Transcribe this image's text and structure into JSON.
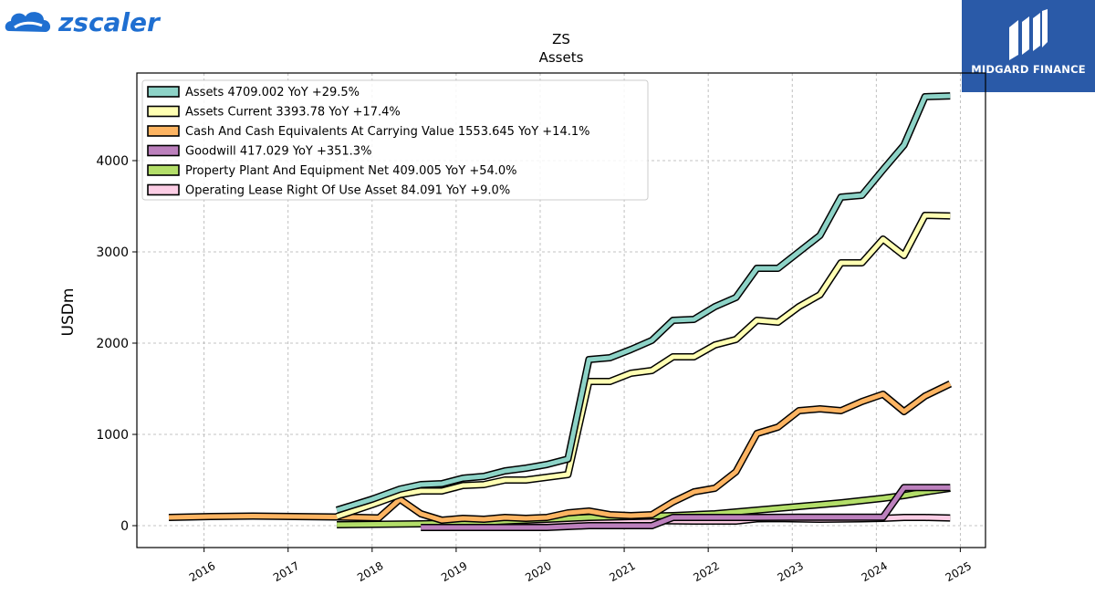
{
  "logos": {
    "left": {
      "text": "zscaler",
      "icon": "zscaler-cloud-icon",
      "color": "#1f6fd1"
    },
    "right": {
      "text": "MIDGARD FINANCE",
      "icon": "midgard-mark-icon",
      "background": "#2a5aa8"
    }
  },
  "chart_data": {
    "type": "line",
    "title": "ZS",
    "subtitle": "Assets",
    "xlabel": "",
    "ylabel": "USDm",
    "xlim": [
      2015.2,
      2025.3
    ],
    "ylim": [
      -240,
      4960
    ],
    "x_ticks": [
      "2016",
      "2017",
      "2018",
      "2019",
      "2020",
      "2021",
      "2022",
      "2023",
      "2024",
      "2025"
    ],
    "y_ticks": [
      0,
      1000,
      2000,
      3000,
      4000
    ],
    "grid": true,
    "legend": "top-left",
    "series": [
      {
        "name": "Assets",
        "legend": "Assets  4709.002 YoY +29.5%",
        "color": "#8dd3c7",
        "points": [
          [
            2017.58,
            170
          ],
          [
            2018.0,
            290
          ],
          [
            2018.33,
            400
          ],
          [
            2018.58,
            450
          ],
          [
            2018.83,
            460
          ],
          [
            2019.08,
            520
          ],
          [
            2019.33,
            540
          ],
          [
            2019.58,
            600
          ],
          [
            2019.83,
            630
          ],
          [
            2020.08,
            670
          ],
          [
            2020.33,
            730
          ],
          [
            2020.58,
            1820
          ],
          [
            2020.83,
            1840
          ],
          [
            2021.08,
            1930
          ],
          [
            2021.33,
            2030
          ],
          [
            2021.58,
            2250
          ],
          [
            2021.83,
            2260
          ],
          [
            2022.08,
            2400
          ],
          [
            2022.33,
            2500
          ],
          [
            2022.58,
            2820
          ],
          [
            2022.83,
            2820
          ],
          [
            2023.08,
            3000
          ],
          [
            2023.33,
            3180
          ],
          [
            2023.58,
            3600
          ],
          [
            2023.83,
            3620
          ],
          [
            2024.08,
            3900
          ],
          [
            2024.33,
            4170
          ],
          [
            2024.58,
            4700
          ],
          [
            2024.88,
            4709
          ]
        ]
      },
      {
        "name": "Assets Current",
        "legend": "Assets Current  3393.78 YoY +17.4%",
        "color": "#ffffb3",
        "points": [
          [
            2017.58,
            100
          ],
          [
            2018.0,
            230
          ],
          [
            2018.33,
            340
          ],
          [
            2018.58,
            380
          ],
          [
            2018.83,
            380
          ],
          [
            2019.08,
            440
          ],
          [
            2019.33,
            450
          ],
          [
            2019.58,
            500
          ],
          [
            2019.83,
            500
          ],
          [
            2020.08,
            530
          ],
          [
            2020.33,
            560
          ],
          [
            2020.58,
            1580
          ],
          [
            2020.83,
            1580
          ],
          [
            2021.08,
            1670
          ],
          [
            2021.33,
            1700
          ],
          [
            2021.58,
            1850
          ],
          [
            2021.83,
            1850
          ],
          [
            2022.08,
            1980
          ],
          [
            2022.33,
            2040
          ],
          [
            2022.58,
            2250
          ],
          [
            2022.83,
            2230
          ],
          [
            2023.08,
            2400
          ],
          [
            2023.33,
            2530
          ],
          [
            2023.58,
            2880
          ],
          [
            2023.83,
            2880
          ],
          [
            2024.08,
            3140
          ],
          [
            2024.33,
            2960
          ],
          [
            2024.58,
            3400
          ],
          [
            2024.88,
            3394
          ]
        ]
      },
      {
        "name": "Cash And Cash Equivalents At Carrying Value",
        "legend": "Cash And Cash Equivalents At Carrying Value  1553.645 YoY +14.1%",
        "color": "#fdb462",
        "points": [
          [
            2015.58,
            90
          ],
          [
            2016.08,
            100
          ],
          [
            2016.58,
            105
          ],
          [
            2017.08,
            100
          ],
          [
            2017.58,
            95
          ],
          [
            2018.08,
            85
          ],
          [
            2018.33,
            290
          ],
          [
            2018.58,
            130
          ],
          [
            2018.83,
            60
          ],
          [
            2019.08,
            80
          ],
          [
            2019.33,
            70
          ],
          [
            2019.58,
            90
          ],
          [
            2019.83,
            80
          ],
          [
            2020.08,
            90
          ],
          [
            2020.33,
            140
          ],
          [
            2020.58,
            160
          ],
          [
            2020.83,
            120
          ],
          [
            2021.08,
            110
          ],
          [
            2021.33,
            120
          ],
          [
            2021.58,
            260
          ],
          [
            2021.83,
            370
          ],
          [
            2022.08,
            410
          ],
          [
            2022.33,
            590
          ],
          [
            2022.58,
            1010
          ],
          [
            2022.83,
            1080
          ],
          [
            2023.08,
            1260
          ],
          [
            2023.33,
            1280
          ],
          [
            2023.58,
            1260
          ],
          [
            2023.83,
            1360
          ],
          [
            2024.08,
            1440
          ],
          [
            2024.33,
            1250
          ],
          [
            2024.58,
            1420
          ],
          [
            2024.88,
            1554
          ]
        ]
      },
      {
        "name": "Goodwill",
        "legend": "Goodwill  417.029 YoY +351.3%",
        "color": "#bc80bd",
        "points": [
          [
            2018.58,
            -20
          ],
          [
            2019.08,
            -20
          ],
          [
            2019.58,
            -20
          ],
          [
            2020.08,
            -20
          ],
          [
            2020.58,
            0
          ],
          [
            2021.08,
            0
          ],
          [
            2021.33,
            0
          ],
          [
            2021.58,
            90
          ],
          [
            2022.08,
            90
          ],
          [
            2022.58,
            90
          ],
          [
            2023.08,
            92
          ],
          [
            2023.58,
            92
          ],
          [
            2024.08,
            92
          ],
          [
            2024.33,
            417
          ],
          [
            2024.58,
            417
          ],
          [
            2024.88,
            417
          ]
        ]
      },
      {
        "name": "Property Plant And Equipment Net",
        "legend": "Property Plant And Equipment Net  409.005 YoY +54.0%",
        "color": "#b3de69",
        "points": [
          [
            2017.58,
            10
          ],
          [
            2018.08,
            15
          ],
          [
            2018.58,
            20
          ],
          [
            2019.08,
            30
          ],
          [
            2019.58,
            50
          ],
          [
            2020.08,
            70
          ],
          [
            2020.58,
            90
          ],
          [
            2021.08,
            100
          ],
          [
            2021.58,
            110
          ],
          [
            2022.08,
            130
          ],
          [
            2022.58,
            170
          ],
          [
            2023.08,
            210
          ],
          [
            2023.58,
            250
          ],
          [
            2024.08,
            300
          ],
          [
            2024.33,
            330
          ],
          [
            2024.58,
            370
          ],
          [
            2024.88,
            409
          ]
        ]
      },
      {
        "name": "Operating Lease Right Of Use Asset",
        "legend": "Operating Lease Right Of Use Asset  84.091 YoY +9.0%",
        "color": "#fccde5",
        "points": [
          [
            2019.83,
            45
          ],
          [
            2020.33,
            45
          ],
          [
            2020.83,
            50
          ],
          [
            2021.33,
            55
          ],
          [
            2021.83,
            50
          ],
          [
            2022.33,
            50
          ],
          [
            2022.58,
            75
          ],
          [
            2022.83,
            78
          ],
          [
            2023.33,
            70
          ],
          [
            2023.83,
            75
          ],
          [
            2024.08,
            80
          ],
          [
            2024.33,
            90
          ],
          [
            2024.58,
            90
          ],
          [
            2024.88,
            84
          ]
        ]
      }
    ]
  }
}
